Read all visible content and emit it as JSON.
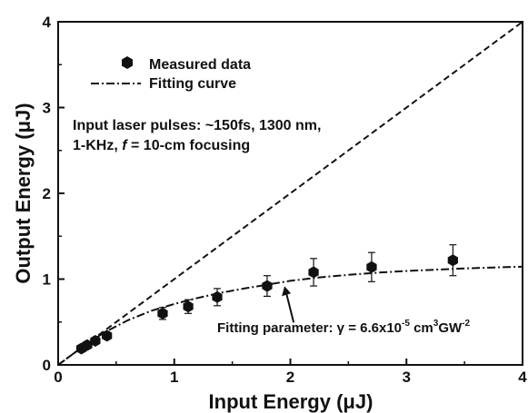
{
  "chart_data": {
    "type": "scatter",
    "xlabel": "Input Energy (μJ)",
    "ylabel": "Output Energy (μJ)",
    "xlim": [
      0,
      4
    ],
    "ylim": [
      0,
      4
    ],
    "x_ticks": [
      "0",
      "1",
      "2",
      "3",
      "4"
    ],
    "y_ticks": [
      "0",
      "1",
      "2",
      "3",
      "4"
    ],
    "legend": {
      "placement": "top-left",
      "entries": [
        {
          "label": "Measured data",
          "marker": "hexagon"
        },
        {
          "label": "Fitting curve",
          "line": "dash-dot"
        }
      ]
    },
    "series": [
      {
        "name": "Measured data",
        "points": [
          {
            "x": 0.2,
            "y": 0.19,
            "err": 0.0
          },
          {
            "x": 0.25,
            "y": 0.23,
            "err": 0.0
          },
          {
            "x": 0.32,
            "y": 0.28,
            "err": 0.0
          },
          {
            "x": 0.42,
            "y": 0.34,
            "err": 0.0
          },
          {
            "x": 0.9,
            "y": 0.6,
            "err": 0.07
          },
          {
            "x": 1.12,
            "y": 0.68,
            "err": 0.08
          },
          {
            "x": 1.37,
            "y": 0.79,
            "err": 0.1
          },
          {
            "x": 1.8,
            "y": 0.92,
            "err": 0.12
          },
          {
            "x": 2.2,
            "y": 1.08,
            "err": 0.16
          },
          {
            "x": 2.7,
            "y": 1.14,
            "err": 0.17
          },
          {
            "x": 3.4,
            "y": 1.22,
            "err": 0.18
          }
        ]
      },
      {
        "name": "Fitting curve",
        "x": [
          0,
          0.2,
          0.4,
          0.6,
          0.8,
          1.0,
          1.2,
          1.4,
          1.6,
          1.8,
          2.0,
          2.25,
          2.5,
          2.75,
          3.0,
          3.25,
          3.5,
          3.75,
          4.0
        ],
        "y": [
          0,
          0.2,
          0.38,
          0.52,
          0.63,
          0.71,
          0.78,
          0.84,
          0.89,
          0.935,
          0.98,
          1.02,
          1.05,
          1.075,
          1.095,
          1.11,
          1.125,
          1.135,
          1.145
        ]
      },
      {
        "line": "dashed",
        "x": [
          0,
          4
        ],
        "y": [
          0,
          4
        ]
      }
    ],
    "annotations": {
      "note_line1": "Input laser pulses: ~150fs, 1300 nm,",
      "note_line2_a": "1-KHz, ",
      "note_line2_f": "f",
      "note_line2_b": " = 10-cm focusing",
      "fit_text_a": "Fitting parameter: γ = 6.6x10",
      "fit_exp1": "-5",
      "fit_text_b": " cm",
      "fit_exp2": "3",
      "fit_text_c": "GW",
      "fit_exp3": "-2",
      "arrow_target": {
        "x": 1.95,
        "y": 0.96
      }
    },
    "grid": false
  }
}
